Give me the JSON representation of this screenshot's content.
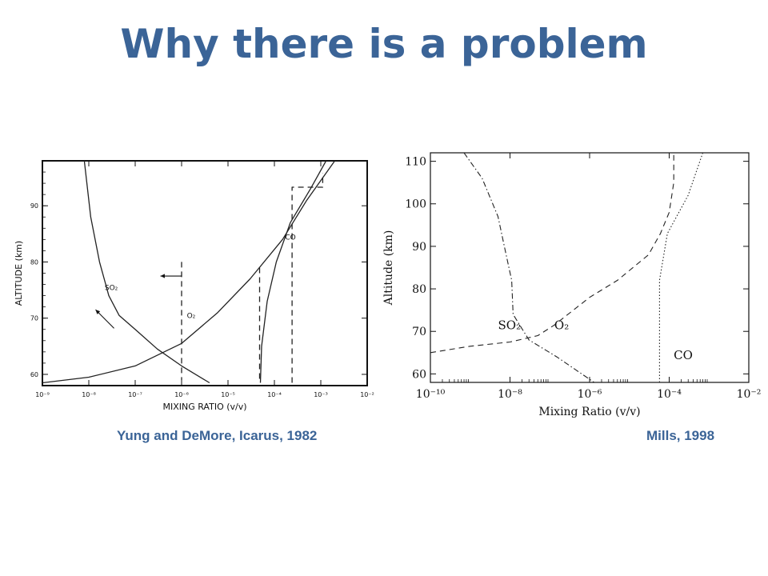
{
  "slide": {
    "title": "Why there is a problem",
    "caption_left": "Yung and DeMore, Icarus, 1982",
    "caption_right": "Mills, 1998"
  },
  "chart_data": [
    {
      "type": "line",
      "xscale": "log",
      "xlim": [
        1e-09,
        0.01
      ],
      "ylim": [
        58,
        98
      ],
      "xlabel": "MIXING RATIO (v/v)",
      "ylabel": "ALTITUDE (km)",
      "xtick_labels": [
        "10⁻⁹",
        "10⁻⁸",
        "10⁻⁷",
        "10⁻⁶",
        "10⁻⁵",
        "10⁻⁴",
        "10⁻³",
        "10⁻²"
      ],
      "xticks": [
        1e-09,
        1e-08,
        1e-07,
        1e-06,
        1e-05,
        0.0001,
        0.001,
        0.01
      ],
      "ytick_labels": [
        "60",
        "70",
        "80",
        "90"
      ],
      "yticks": [
        60,
        70,
        80,
        90
      ],
      "series": [
        {
          "name": "SO₂",
          "style": "solid",
          "points": [
            [
              8e-09,
              98
            ],
            [
              1.1e-08,
              88
            ],
            [
              1.7e-08,
              80
            ],
            [
              2.7e-08,
              74
            ],
            [
              4.5e-08,
              70.5
            ],
            [
              1e-07,
              68
            ],
            [
              3e-07,
              64.5
            ],
            [
              1e-06,
              61.5
            ],
            [
              4e-06,
              58.5
            ]
          ]
        },
        {
          "name": "O₂",
          "style": "solid",
          "points": [
            [
              1e-09,
              58.5
            ],
            [
              1e-08,
              59.5
            ],
            [
              1e-07,
              61.5
            ],
            [
              1e-06,
              65.5
            ],
            [
              6e-06,
              71
            ],
            [
              3e-05,
              77
            ],
            [
              0.00015,
              84
            ],
            [
              0.0005,
              91
            ],
            [
              0.002,
              98
            ]
          ]
        },
        {
          "name": "CO",
          "style": "solid",
          "points": [
            [
              5e-05,
              58.5
            ],
            [
              5.3e-05,
              65
            ],
            [
              7e-05,
              73
            ],
            [
              0.00011,
              80
            ],
            [
              0.00022,
              87
            ],
            [
              0.0006,
              93
            ],
            [
              0.0013,
              98
            ]
          ]
        },
        {
          "name": "",
          "style": "dashed",
          "points": [
            [
              1e-06,
              80
            ],
            [
              1e-06,
              59
            ]
          ]
        },
        {
          "name": "",
          "style": "dashed",
          "points": [
            [
              4.8e-05,
              79
            ],
            [
              4.8e-05,
              58.5
            ]
          ]
        },
        {
          "name": "",
          "style": "dashed",
          "points": [
            [
              0.00024,
              58.5
            ],
            [
              0.00024,
              93.3
            ],
            [
              0.0011,
              93.3
            ],
            [
              0.0011,
              95.8
            ]
          ]
        }
      ],
      "labels": [
        {
          "text": "SO₂",
          "x": 2.2e-08,
          "y": 75
        },
        {
          "text": "O₂",
          "x": 1.3e-06,
          "y": 70
        },
        {
          "text": "CO",
          "x": 0.00017,
          "y": 84
        }
      ],
      "arrows": [
        {
          "from": [
            1e-06,
            77.5
          ],
          "to": [
            3.5e-07,
            77.5
          ]
        },
        {
          "from": [
            3.5e-08,
            68.2
          ],
          "to": [
            1.4e-08,
            71.5
          ]
        }
      ]
    },
    {
      "type": "line",
      "xscale": "log",
      "xlim": [
        1e-10,
        0.01
      ],
      "ylim": [
        58,
        112
      ],
      "xlabel": "Mixing Ratio (v/v)",
      "ylabel": "Altitude (km)",
      "xtick_labels": [
        "10⁻¹⁰",
        "10⁻⁸",
        "10⁻⁶",
        "10⁻⁴",
        "10⁻²"
      ],
      "xticks": [
        1e-10,
        1e-08,
        1e-06,
        0.0001,
        0.01
      ],
      "ytick_labels": [
        "60",
        "70",
        "80",
        "90",
        "100",
        "110"
      ],
      "yticks": [
        60,
        70,
        80,
        90,
        100,
        110
      ],
      "series": [
        {
          "name": "SO₂",
          "style": "dashdot",
          "points": [
            [
              7e-10,
              112
            ],
            [
              2e-09,
              106
            ],
            [
              5e-09,
              97
            ],
            [
              8e-09,
              88
            ],
            [
              1.1e-08,
              82
            ],
            [
              1.2e-08,
              74
            ],
            [
              3e-08,
              68
            ],
            [
              1.5e-07,
              64
            ],
            [
              1.3e-06,
              58
            ]
          ]
        },
        {
          "name": "O₂",
          "style": "dashed",
          "points": [
            [
              1e-10,
              65
            ],
            [
              1e-09,
              66.5
            ],
            [
              1e-08,
              67.5
            ],
            [
              5e-08,
              69
            ],
            [
              1.3e-07,
              71.5
            ],
            [
              1e-06,
              78
            ],
            [
              5e-06,
              82
            ],
            [
              3e-05,
              88
            ],
            [
              6e-05,
              93
            ],
            [
              0.0001,
              98
            ],
            [
              0.00013,
              105
            ],
            [
              0.00013,
              112
            ]
          ]
        },
        {
          "name": "CO",
          "style": "dotted",
          "points": [
            [
              5.7e-05,
              58
            ],
            [
              5.7e-05,
              82
            ],
            [
              9e-05,
              93
            ],
            [
              0.0003,
              102
            ],
            [
              0.0007,
              112
            ]
          ]
        }
      ],
      "labels": [
        {
          "text": "SO₂",
          "x": 5e-09,
          "y": 70.5
        },
        {
          "text": "O₂",
          "x": 1.3e-07,
          "y": 70.5
        },
        {
          "text": "CO",
          "x": 0.00013,
          "y": 63.5
        }
      ]
    }
  ]
}
